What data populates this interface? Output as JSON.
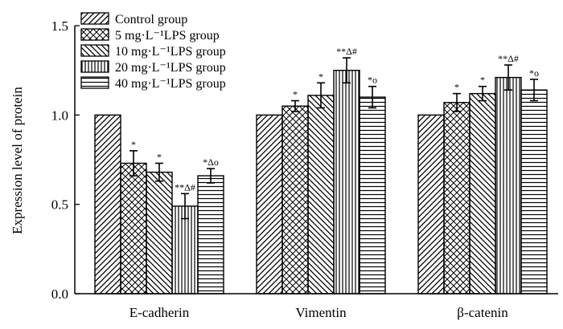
{
  "chart_data": {
    "type": "bar",
    "title": "",
    "xlabel": "",
    "ylabel": "Expression level of protein",
    "ylim": [
      0,
      1.5
    ],
    "yticks": [
      "0.0",
      "0.5",
      "1.0",
      "1.5"
    ],
    "categories": [
      "E-cadherin",
      "Vimentin",
      "β-catenin"
    ],
    "series": [
      {
        "name": "Control group",
        "pattern": "diag-left",
        "values": [
          1.0,
          1.0,
          1.0
        ],
        "errors": [
          0,
          0,
          0
        ],
        "annotations": [
          "",
          "",
          ""
        ]
      },
      {
        "name": "5 mg·L⁻¹LPS group",
        "pattern": "crosshatch",
        "values": [
          0.73,
          1.05,
          1.07
        ],
        "errors": [
          0.07,
          0.03,
          0.05
        ],
        "annotations": [
          "*",
          "*",
          "*"
        ]
      },
      {
        "name": "10 mg·L⁻¹LPS group",
        "pattern": "diag-right",
        "values": [
          0.68,
          1.11,
          1.12
        ],
        "errors": [
          0.05,
          0.07,
          0.04
        ],
        "annotations": [
          "*",
          "*",
          "*"
        ]
      },
      {
        "name": "20 mg·L⁻¹LPS group",
        "pattern": "vertical",
        "values": [
          0.49,
          1.25,
          1.21
        ],
        "errors": [
          0.07,
          0.07,
          0.07
        ],
        "annotations": [
          "**Δ#",
          "**Δ#",
          "**Δ#"
        ]
      },
      {
        "name": "40 mg·L⁻¹LPS group",
        "pattern": "horizontal",
        "values": [
          0.66,
          1.1,
          1.14
        ],
        "errors": [
          0.04,
          0.06,
          0.06
        ],
        "annotations": [
          "*Δo",
          "*o",
          "*o"
        ]
      }
    ],
    "legend_position": "top-left"
  }
}
